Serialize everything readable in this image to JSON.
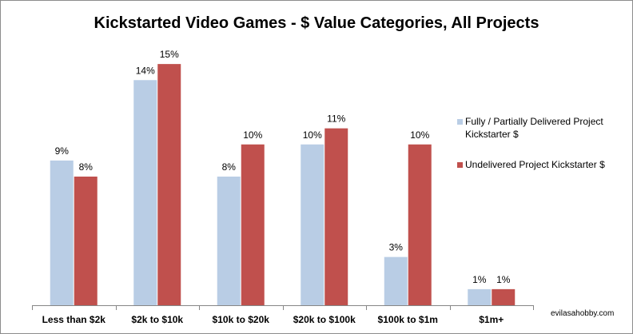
{
  "chart_data": {
    "type": "bar",
    "title": "Kickstarted Video Games - $ Value Categories, All Projects",
    "categories": [
      "Less than $2k",
      "$2k to $10k",
      "$10k to $20k",
      "$20k to $100k",
      "$100k to $1m",
      "$1m+"
    ],
    "series": [
      {
        "name": "Fully / Partially Delivered Project Kickstarter $",
        "color": "#b9cde5",
        "values": [
          9,
          14,
          8,
          10,
          3,
          1
        ],
        "labels": [
          "9%",
          "14%",
          "8%",
          "10%",
          "3%",
          "1%"
        ]
      },
      {
        "name": "Undelivered Project Kickstarter $",
        "color": "#c0504d",
        "values": [
          8,
          15,
          10,
          11,
          10,
          1
        ],
        "labels": [
          "8%",
          "15%",
          "10%",
          "11%",
          "10%",
          "1%"
        ]
      }
    ],
    "xlabel": "",
    "ylabel": "",
    "ylim": [
      0,
      16
    ],
    "legend_position": "right",
    "grid": false
  },
  "watermark": "evilasahobby.com"
}
